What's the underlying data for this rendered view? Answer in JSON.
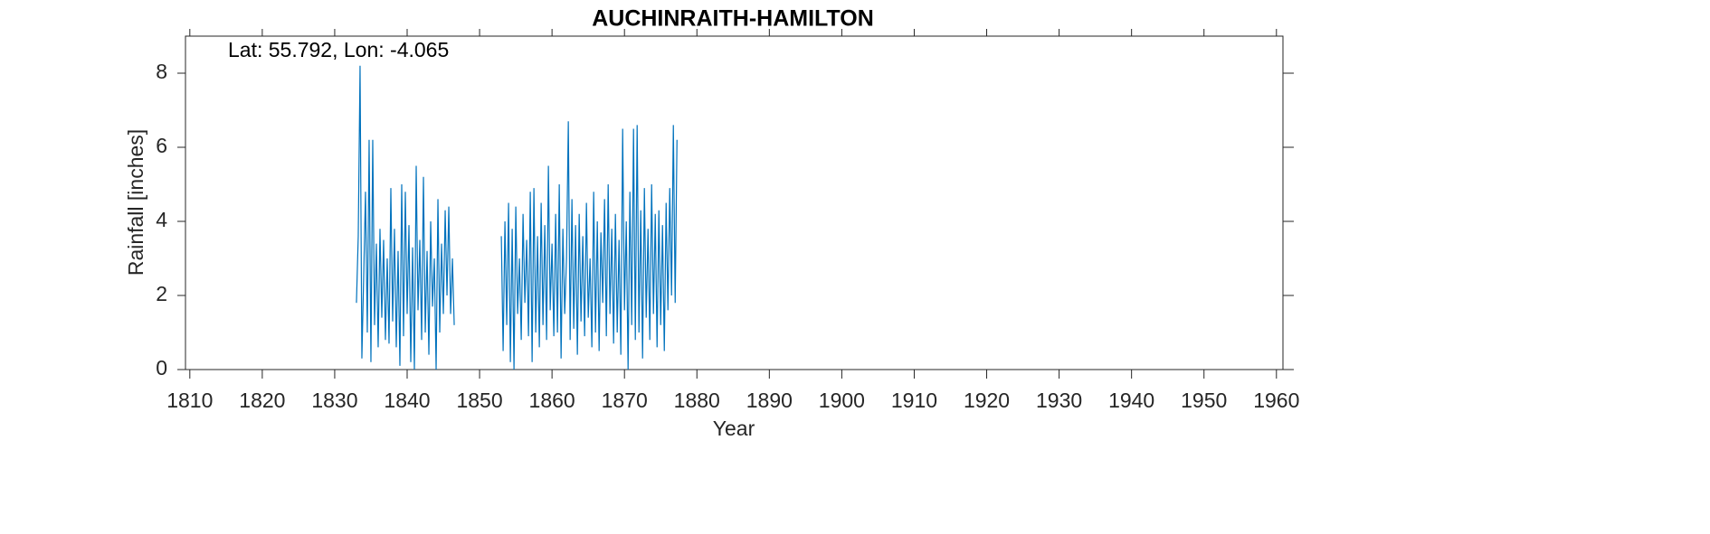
{
  "chart_data": {
    "type": "line",
    "title": "AUCHINRAITH-HAMILTON",
    "annotation": "Lat: 55.792, Lon: -4.065",
    "xlabel": "Year",
    "ylabel": "Rainfall [inches]",
    "xlim": [
      1809.4,
      1960.9
    ],
    "ylim": [
      0,
      9
    ],
    "xticks": [
      1810,
      1820,
      1830,
      1840,
      1850,
      1860,
      1870,
      1880,
      1890,
      1900,
      1910,
      1920,
      1930,
      1940,
      1950,
      1960
    ],
    "yticks": [
      0,
      2,
      4,
      6,
      8
    ],
    "grid": false,
    "x": [
      1833,
      1833.25,
      1833.5,
      1833.75,
      1834,
      1834.25,
      1834.5,
      1834.75,
      1835,
      1835.25,
      1835.5,
      1835.75,
      1836,
      1836.25,
      1836.5,
      1836.75,
      1837,
      1837.25,
      1837.5,
      1837.75,
      1838,
      1838.25,
      1838.5,
      1838.75,
      1839,
      1839.25,
      1839.5,
      1839.75,
      1840,
      1840.25,
      1840.5,
      1840.75,
      1841,
      1841.25,
      1841.5,
      1841.75,
      1842,
      1842.25,
      1842.5,
      1842.75,
      1843,
      1843.25,
      1843.5,
      1843.75,
      1844,
      1844.25,
      1844.5,
      1844.75,
      1845,
      1845.25,
      1845.5,
      1845.75,
      1846,
      1846.25,
      1846.5,
      1850,
      1853,
      1853.25,
      1853.5,
      1853.75,
      1854,
      1854.25,
      1854.5,
      1854.75,
      1855,
      1855.25,
      1855.5,
      1855.75,
      1856,
      1856.25,
      1856.5,
      1856.75,
      1857,
      1857.25,
      1857.5,
      1857.75,
      1858,
      1858.25,
      1858.5,
      1858.75,
      1859,
      1859.25,
      1859.5,
      1859.75,
      1860,
      1860.25,
      1860.5,
      1860.75,
      1861,
      1861.25,
      1861.5,
      1861.75,
      1862,
      1862.25,
      1862.5,
      1862.75,
      1863,
      1863.25,
      1863.5,
      1863.75,
      1864,
      1864.25,
      1864.5,
      1864.75,
      1865,
      1865.25,
      1865.5,
      1865.75,
      1866,
      1866.25,
      1866.5,
      1866.75,
      1867,
      1867.25,
      1867.5,
      1867.75,
      1868,
      1868.25,
      1868.5,
      1868.75,
      1869,
      1869.25,
      1869.5,
      1869.75,
      1870,
      1870.25,
      1870.5,
      1870.75,
      1871,
      1871.25,
      1871.5,
      1871.75,
      1872,
      1872.25,
      1872.5,
      1872.75,
      1873,
      1873.25,
      1873.5,
      1873.75,
      1874,
      1874.25,
      1874.5,
      1874.75,
      1875,
      1875.25,
      1875.5,
      1875.75,
      1876,
      1876.25,
      1876.5,
      1876.75,
      1877,
      1877.25
    ],
    "series": [
      {
        "color": "#0072bd",
        "values": [
          1.8,
          3.6,
          8.2,
          0.3,
          2.5,
          4.8,
          1.0,
          6.2,
          0.2,
          6.2,
          1.2,
          3.4,
          0.6,
          3.8,
          1.4,
          3.5,
          0.8,
          3.0,
          0.7,
          4.9,
          1.3,
          3.8,
          0.6,
          3.2,
          0.1,
          5.0,
          0.9,
          4.8,
          1.5,
          3.9,
          0.2,
          3.3,
          0.0,
          5.5,
          1.6,
          3.5,
          0.8,
          5.2,
          1.0,
          3.2,
          0.4,
          4.0,
          1.7,
          3.0,
          0.0,
          4.6,
          1.0,
          3.4,
          1.5,
          4.3,
          2.0,
          4.4,
          1.5,
          3.0,
          1.2,
          null,
          3.6,
          0.5,
          4.0,
          1.2,
          4.5,
          0.2,
          3.8,
          0.0,
          4.4,
          1.5,
          3.0,
          0.8,
          4.2,
          1.8,
          3.5,
          0.9,
          4.8,
          0.2,
          4.9,
          1.0,
          3.6,
          0.6,
          4.5,
          1.2,
          3.9,
          0.8,
          5.5,
          1.6,
          3.4,
          0.9,
          4.2,
          1.0,
          5.0,
          0.3,
          3.8,
          1.5,
          3.0,
          6.7,
          0.8,
          4.6,
          1.1,
          3.9,
          0.4,
          4.2,
          1.3,
          3.6,
          0.9,
          4.5,
          1.4,
          3.0,
          0.6,
          4.8,
          1.0,
          4.0,
          0.5,
          3.7,
          1.8,
          4.6,
          0.9,
          5.0,
          1.5,
          3.8,
          0.7,
          4.2,
          1.0,
          3.5,
          0.4,
          6.5,
          1.6,
          4.0,
          0.0,
          4.8,
          1.2,
          6.5,
          0.8,
          6.6,
          1.0,
          4.3,
          0.3,
          4.9,
          1.4,
          3.8,
          0.8,
          5.0,
          1.5,
          4.2,
          0.6,
          4.3,
          1.2,
          3.9,
          0.5,
          4.5,
          1.6,
          4.9,
          2.0,
          6.6,
          1.8,
          6.2
        ]
      }
    ]
  }
}
